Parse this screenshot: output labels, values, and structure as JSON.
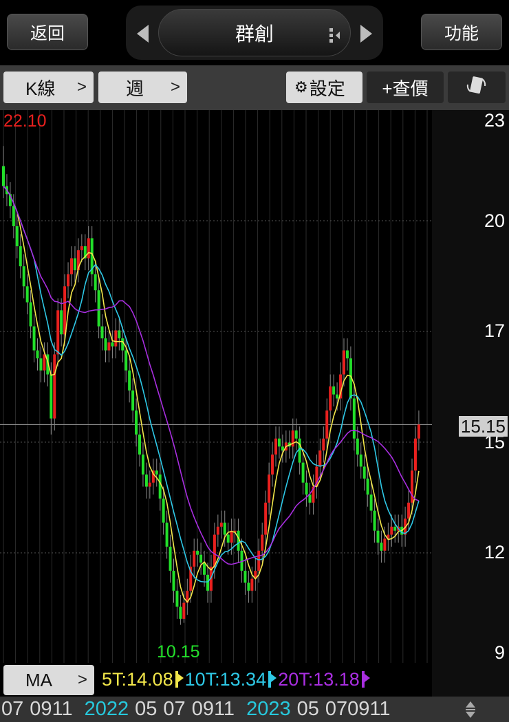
{
  "header": {
    "back_label": "返回",
    "stock_name": "群創",
    "function_label": "功能"
  },
  "toolbar": {
    "chart_type_label": "K線",
    "period_label": "週",
    "settings_label": "設定",
    "quote_label": "+查價",
    "rotate_icon": "rotate-screen-icon"
  },
  "colors": {
    "up": "#e8201e",
    "down": "#22e02a",
    "ma5": "#f2e64a",
    "ma10": "#2ec8e6",
    "ma20": "#a82ee0",
    "year_label": "#27c8dc"
  },
  "ma_panel": {
    "button_label": "MA",
    "ma5_label": "5T:14.08",
    "ma10_label": "10T:13.34",
    "ma20_label": "20T:13.18"
  },
  "chart_data": {
    "type": "candlestick",
    "period": "weekly",
    "ylim": [
      9.2,
      23
    ],
    "y_ticks": [
      "23",
      "20",
      "17",
      "15",
      "12",
      "9"
    ],
    "grid": true,
    "max_label": "22.10",
    "min_label": "10.15",
    "last_price_label": "15.15",
    "x_labels": [
      {
        "text": "07",
        "year": false
      },
      {
        "text": "0911",
        "year": false
      },
      {
        "text": "2022",
        "year": true
      },
      {
        "text": "05",
        "year": false
      },
      {
        "text": "07",
        "year": false
      },
      {
        "text": "0911",
        "year": false
      },
      {
        "text": "2023",
        "year": true
      },
      {
        "text": "05",
        "year": false
      },
      {
        "text": "070911",
        "year": false
      }
    ],
    "open": [
      21.6,
      21.1,
      20.9,
      20.6,
      20.1,
      19.6,
      19.1,
      18.6,
      18.2,
      17.6,
      17.0,
      16.8,
      16.5,
      16.9,
      16.4,
      15.3,
      16.9,
      18.0,
      17.4,
      18.6,
      18.9,
      19.3,
      19.0,
      19.5,
      19.6,
      19.3,
      19.8,
      18.9,
      18.5,
      17.6,
      17.3,
      17.0,
      17.2,
      17.1,
      17.5,
      17.3,
      17.0,
      16.5,
      16.0,
      15.5,
      14.9,
      14.4,
      13.9,
      13.6,
      13.7,
      14.0,
      13.9,
      13.3,
      12.7,
      12.1,
      11.5,
      11.0,
      10.6,
      10.3,
      10.7,
      11.0,
      11.6,
      12.0,
      11.9,
      11.7,
      11.4,
      11.0,
      11.6,
      12.4,
      12.6,
      12.7,
      12.4,
      12.2,
      12.5,
      12.5,
      12.0,
      11.5,
      11.2,
      11.0,
      11.3,
      11.5,
      12.0,
      12.4,
      13.2,
      13.9,
      14.4,
      14.8,
      14.6,
      14.5,
      14.7,
      14.6,
      15.0,
      14.8,
      14.2,
      13.7,
      13.4,
      13.2,
      13.6,
      14.1,
      14.5,
      14.8,
      15.5,
      16.1,
      15.9,
      15.8,
      16.4,
      17.0,
      16.8,
      15.8,
      14.8,
      14.4,
      14.1,
      13.8,
      13.4,
      13.0,
      12.5,
      12.2,
      12.0,
      12.3,
      12.4,
      12.6,
      12.5,
      12.6,
      12.4,
      12.8,
      13.2,
      14.0,
      14.8
    ],
    "high": [
      22.1,
      21.4,
      21.2,
      20.9,
      20.4,
      19.9,
      19.4,
      18.9,
      18.5,
      17.9,
      17.3,
      17.1,
      17.2,
      17.2,
      16.7,
      17.2,
      18.3,
      18.3,
      18.9,
      19.2,
      19.6,
      19.6,
      19.8,
      19.9,
      19.9,
      20.1,
      20.1,
      19.2,
      18.8,
      17.9,
      17.6,
      17.5,
      17.5,
      17.8,
      17.8,
      17.6,
      17.3,
      16.8,
      16.3,
      15.8,
      15.2,
      14.7,
      14.2,
      14.0,
      14.3,
      14.3,
      14.2,
      13.6,
      13.0,
      12.4,
      11.8,
      11.3,
      10.9,
      11.0,
      11.3,
      11.9,
      12.3,
      12.3,
      12.2,
      12.0,
      11.7,
      11.9,
      12.7,
      12.9,
      13.0,
      13.0,
      12.7,
      12.8,
      12.8,
      12.8,
      12.3,
      11.8,
      11.5,
      11.6,
      11.8,
      12.3,
      12.7,
      13.5,
      14.2,
      14.7,
      15.1,
      15.1,
      14.9,
      15.0,
      15.0,
      15.3,
      15.3,
      15.1,
      14.5,
      14.0,
      13.7,
      13.9,
      14.4,
      14.8,
      15.1,
      15.8,
      16.4,
      16.4,
      16.2,
      16.7,
      17.3,
      17.3,
      17.1,
      16.1,
      15.1,
      14.7,
      14.4,
      14.1,
      13.7,
      13.3,
      12.8,
      12.5,
      12.6,
      12.7,
      12.9,
      12.9,
      12.9,
      12.9,
      13.1,
      13.5,
      14.3,
      15.1,
      15.5
    ],
    "low": [
      20.8,
      20.6,
      20.3,
      19.8,
      19.3,
      18.8,
      18.3,
      17.9,
      17.3,
      16.7,
      16.5,
      16.2,
      16.2,
      16.1,
      14.9,
      15.0,
      16.6,
      17.1,
      17.1,
      18.3,
      18.6,
      18.7,
      18.7,
      19.2,
      19.0,
      19.0,
      18.6,
      18.2,
      17.3,
      17.0,
      16.7,
      16.7,
      16.8,
      16.8,
      17.0,
      16.7,
      16.2,
      15.7,
      15.2,
      14.6,
      14.1,
      13.6,
      13.3,
      13.3,
      13.4,
      13.6,
      13.0,
      12.4,
      11.8,
      11.2,
      10.7,
      10.3,
      10.15,
      10.2,
      10.4,
      10.7,
      11.3,
      11.6,
      11.4,
      11.1,
      10.7,
      10.7,
      11.3,
      12.1,
      12.3,
      12.1,
      11.9,
      11.9,
      12.2,
      11.7,
      11.2,
      10.9,
      10.7,
      10.7,
      11.0,
      11.2,
      11.7,
      12.1,
      12.9,
      13.6,
      14.1,
      14.3,
      14.2,
      14.2,
      14.3,
      14.3,
      14.5,
      13.9,
      13.4,
      13.1,
      12.9,
      12.9,
      13.3,
      13.8,
      14.2,
      14.5,
      15.2,
      15.6,
      15.5,
      15.5,
      16.1,
      16.5,
      15.5,
      14.5,
      14.1,
      13.8,
      13.5,
      13.1,
      12.7,
      12.2,
      11.9,
      11.7,
      11.7,
      12.0,
      12.1,
      12.2,
      12.2,
      12.1,
      12.1,
      12.5,
      12.9,
      13.7,
      14.5
    ],
    "close": [
      21.1,
      20.9,
      20.6,
      20.1,
      19.6,
      19.1,
      18.6,
      18.2,
      17.6,
      17.0,
      16.8,
      16.5,
      16.9,
      16.4,
      15.3,
      16.9,
      18.0,
      17.4,
      18.6,
      18.9,
      19.3,
      19.0,
      19.5,
      19.6,
      19.3,
      19.8,
      18.9,
      18.5,
      17.6,
      17.3,
      17.0,
      17.2,
      17.1,
      17.5,
      17.3,
      17.0,
      16.5,
      16.0,
      15.5,
      14.9,
      14.4,
      13.9,
      13.6,
      13.7,
      14.0,
      13.9,
      13.3,
      12.7,
      12.1,
      11.5,
      11.0,
      10.6,
      10.3,
      10.7,
      11.0,
      11.6,
      12.0,
      11.9,
      11.7,
      11.4,
      11.0,
      11.6,
      12.4,
      12.6,
      12.7,
      12.4,
      12.2,
      12.5,
      12.5,
      12.0,
      11.5,
      11.2,
      11.0,
      11.3,
      11.5,
      12.0,
      12.4,
      13.2,
      13.9,
      14.4,
      14.8,
      14.6,
      14.5,
      14.7,
      14.6,
      15.0,
      14.8,
      14.2,
      13.7,
      13.4,
      13.2,
      13.6,
      14.1,
      14.5,
      14.8,
      15.5,
      16.1,
      15.9,
      15.8,
      16.4,
      17.0,
      16.8,
      15.8,
      14.8,
      14.4,
      14.1,
      13.8,
      13.4,
      13.0,
      12.5,
      12.2,
      12.0,
      12.3,
      12.4,
      12.6,
      12.5,
      12.6,
      12.4,
      12.8,
      13.2,
      14.0,
      14.8,
      15.15
    ],
    "moving_averages": [
      {
        "name": "5T",
        "period": 5,
        "value": 14.08
      },
      {
        "name": "10T",
        "period": 10,
        "value": 13.34
      },
      {
        "name": "20T",
        "period": 20,
        "value": 13.18
      }
    ]
  }
}
